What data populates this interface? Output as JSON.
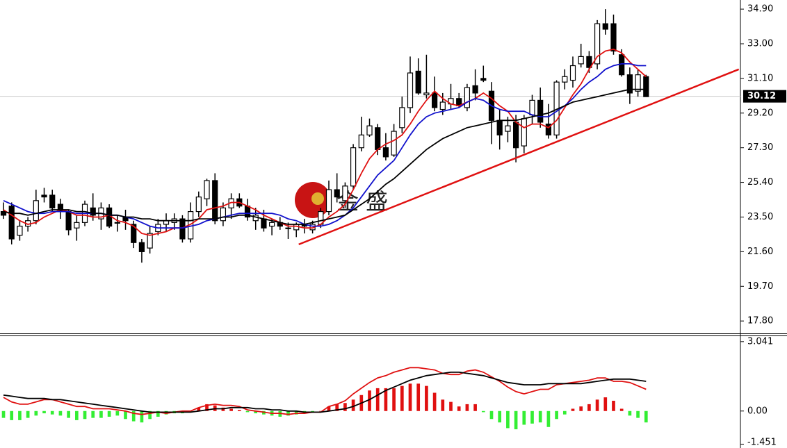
{
  "chart_data": [
    {
      "type": "candlestick",
      "xlim": [
        -0.43,
        90.6
      ],
      "ylim": [
        17.12,
        35.4
      ],
      "yticks": [
        {
          "value": 34.9,
          "label": "34.90"
        },
        {
          "value": 33.0,
          "label": "33.00"
        },
        {
          "value": 31.1,
          "label": "31.10"
        },
        {
          "value": 29.2,
          "label": "29.20"
        },
        {
          "value": 27.3,
          "label": "27.30"
        },
        {
          "value": 25.4,
          "label": "25.40"
        },
        {
          "value": 23.5,
          "label": "23.50"
        },
        {
          "value": 21.6,
          "label": "21.60"
        },
        {
          "value": 19.7,
          "label": "19.70"
        },
        {
          "value": 17.8,
          "label": "17.80"
        }
      ],
      "last_price": {
        "value": 30.12,
        "label": "30.12"
      },
      "watermark": "金 盛",
      "color": "#000000",
      "open": [
        23.8,
        24.1,
        22.5,
        23.0,
        23.3,
        24.7,
        24.7,
        24.2,
        23.8,
        22.9,
        23.2,
        24.0,
        23.4,
        24.0,
        23.2,
        23.5,
        23.1,
        22.1,
        21.8,
        22.7,
        23.1,
        23.2,
        23.4,
        22.3,
        23.8,
        24.5,
        25.5,
        23.3,
        24.0,
        24.5,
        24.1,
        23.3,
        23.4,
        23.0,
        23.2,
        22.9,
        22.8,
        23.1,
        22.8,
        23.1,
        23.8,
        25.0,
        24.4,
        25.2,
        27.3,
        28.0,
        28.4,
        27.3,
        26.9,
        28.4,
        29.5,
        31.5,
        30.2,
        30.3,
        29.4,
        29.7,
        30.0,
        29.5,
        30.7,
        31.1,
        30.4,
        28.8,
        28.2,
        28.7,
        27.4,
        29.1,
        29.9,
        28.6,
        28.0,
        30.9,
        31.0,
        31.9,
        32.3,
        31.9,
        34.1,
        34.1,
        32.4,
        31.3,
        30.4,
        31.2
      ],
      "high": [
        24.3,
        24.3,
        23.3,
        23.5,
        25.0,
        25.1,
        25.0,
        24.5,
        23.9,
        23.6,
        24.4,
        24.8,
        24.3,
        24.2,
        23.6,
        23.9,
        23.3,
        22.3,
        23.0,
        23.4,
        23.7,
        23.7,
        23.6,
        24.3,
        24.9,
        25.6,
        25.9,
        24.3,
        24.8,
        24.8,
        24.5,
        24.0,
        23.9,
        23.4,
        23.5,
        23.2,
        23.2,
        23.4,
        23.3,
        24.0,
        25.5,
        25.9,
        25.4,
        27.5,
        29.0,
        28.9,
        28.6,
        28.1,
        28.6,
        30.1,
        32.3,
        32.2,
        32.4,
        31.2,
        30.3,
        30.8,
        30.3,
        30.8,
        31.6,
        31.8,
        30.9,
        29.4,
        29.0,
        29.1,
        29.1,
        30.2,
        30.6,
        29.7,
        31.0,
        31.6,
        32.3,
        33.0,
        32.6,
        34.3,
        34.9,
        34.6,
        32.7,
        31.7,
        31.6,
        31.3
      ],
      "low": [
        23.4,
        22.0,
        22.2,
        22.7,
        23.1,
        24.3,
        23.8,
        23.4,
        22.5,
        22.2,
        23.0,
        23.3,
        22.8,
        22.9,
        22.7,
        22.8,
        21.8,
        21.0,
        21.5,
        22.5,
        22.7,
        22.8,
        22.1,
        22.1,
        23.5,
        24.1,
        23.1,
        23.0,
        23.4,
        24.0,
        23.3,
        22.8,
        22.7,
        22.5,
        22.8,
        22.3,
        22.4,
        22.6,
        22.6,
        22.9,
        23.6,
        24.3,
        24.0,
        25.0,
        27.1,
        27.9,
        26.9,
        26.6,
        26.8,
        28.1,
        29.2,
        30.2,
        30.0,
        29.3,
        29.1,
        29.4,
        29.5,
        29.3,
        29.9,
        30.9,
        27.5,
        27.2,
        27.6,
        26.5,
        27.0,
        28.6,
        28.4,
        27.8,
        27.8,
        30.5,
        30.6,
        31.7,
        31.4,
        31.6,
        33.5,
        32.4,
        31.2,
        29.7,
        30.1,
        30.1
      ],
      "close": [
        23.6,
        22.3,
        23.0,
        23.3,
        24.4,
        24.6,
        24.0,
        23.8,
        22.8,
        23.2,
        24.2,
        23.6,
        24.0,
        23.0,
        23.2,
        23.3,
        22.1,
        21.6,
        22.6,
        23.1,
        23.3,
        23.4,
        22.3,
        23.8,
        24.6,
        25.5,
        23.3,
        24.0,
        24.5,
        24.1,
        23.5,
        23.6,
        22.9,
        23.2,
        23.0,
        22.9,
        23.1,
        23.0,
        23.1,
        23.8,
        25.0,
        24.6,
        25.2,
        27.3,
        28.0,
        28.5,
        27.2,
        26.8,
        28.2,
        29.5,
        31.4,
        30.3,
        30.3,
        29.5,
        29.8,
        30.0,
        29.6,
        30.6,
        30.3,
        31.0,
        28.8,
        28.0,
        28.5,
        27.3,
        28.9,
        29.9,
        28.7,
        28.0,
        30.9,
        31.2,
        31.8,
        32.3,
        31.7,
        34.1,
        33.8,
        32.6,
        31.3,
        30.3,
        31.3,
        30.1
      ],
      "lines": [
        {
          "color": "#e01010",
          "values": [
            23.9,
            23.6,
            23.3,
            23.1,
            23.2,
            23.5,
            23.7,
            23.9,
            23.8,
            23.6,
            23.6,
            23.5,
            23.5,
            23.6,
            23.3,
            23.2,
            23.0,
            22.6,
            22.5,
            22.6,
            22.7,
            22.9,
            22.9,
            23.1,
            23.4,
            23.9,
            24.0,
            24.1,
            24.3,
            24.3,
            24.1,
            23.9,
            23.6,
            23.4,
            23.2,
            23.0,
            23.0,
            22.9,
            22.9,
            23.1,
            23.5,
            23.8,
            24.2,
            25.0,
            25.9,
            26.7,
            27.2,
            27.5,
            27.7,
            28.0,
            28.6,
            29.3,
            29.9,
            30.4,
            30.0,
            29.7,
            29.6,
            29.8,
            30.0,
            30.3,
            30.0,
            29.6,
            29.3,
            28.7,
            28.4,
            28.6,
            28.6,
            28.4,
            28.8,
            29.5,
            30.2,
            30.8,
            31.6,
            32.3,
            32.6,
            32.7,
            32.5,
            32.0,
            31.6,
            31.2
          ]
        },
        {
          "color": "#1010cc",
          "values": [
            24.4,
            24.2,
            24.0,
            23.8,
            23.7,
            23.7,
            23.8,
            23.8,
            23.8,
            23.7,
            23.7,
            23.7,
            23.7,
            23.6,
            23.6,
            23.5,
            23.4,
            23.2,
            23.0,
            22.9,
            22.9,
            22.9,
            22.9,
            23.0,
            23.1,
            23.3,
            23.4,
            23.5,
            23.6,
            23.7,
            23.7,
            23.7,
            23.7,
            23.7,
            23.6,
            23.4,
            23.3,
            23.1,
            23.0,
            23.0,
            23.1,
            23.3,
            23.6,
            24.0,
            24.6,
            25.2,
            25.8,
            26.2,
            26.6,
            27.3,
            28.0,
            28.6,
            29.0,
            29.2,
            29.3,
            29.4,
            29.5,
            29.8,
            30.0,
            29.9,
            29.6,
            29.4,
            29.3,
            29.3,
            29.3,
            29.1,
            29.0,
            29.0,
            29.3,
            29.6,
            30.0,
            30.5,
            30.9,
            31.2,
            31.6,
            31.8,
            31.9,
            31.9,
            31.8,
            31.8
          ]
        },
        {
          "color": "#000000",
          "values": [
            23.8,
            23.7,
            23.7,
            23.6,
            23.7,
            23.8,
            23.9,
            23.9,
            23.9,
            23.8,
            23.8,
            23.7,
            23.7,
            23.6,
            23.6,
            23.5,
            23.5,
            23.4,
            23.4,
            23.3,
            23.3,
            23.3,
            23.3,
            23.3,
            23.4,
            23.4,
            23.4,
            23.5,
            23.5,
            23.6,
            23.6,
            23.5,
            23.4,
            23.3,
            23.2,
            23.1,
            23.1,
            23.1,
            23.2,
            23.3,
            23.4,
            23.5,
            23.6,
            23.9,
            24.2,
            24.5,
            24.9,
            25.3,
            25.6,
            26.0,
            26.4,
            26.8,
            27.2,
            27.5,
            27.8,
            28.0,
            28.2,
            28.4,
            28.5,
            28.6,
            28.7,
            28.8,
            28.8,
            28.8,
            28.9,
            29.0,
            29.1,
            29.2,
            29.4,
            29.6,
            29.8,
            29.9,
            30.0,
            30.1,
            30.2,
            30.3,
            30.4,
            30.5,
            30.5,
            30.5
          ]
        }
      ],
      "trendline": {
        "color": "#e01010",
        "x": [
          36.3,
          90.4
        ],
        "y": [
          22.0,
          31.6
        ]
      }
    },
    {
      "type": "macd",
      "xlim": [
        -0.43,
        90.6
      ],
      "ylim": [
        -1.62,
        3.31
      ],
      "yticks": [
        {
          "value": 3.041,
          "label": "3.041"
        },
        {
          "value": 0,
          "label": "0.00"
        },
        -1.451
      ],
      "positive_color": "#e01010",
      "negative_color": "#33ee33",
      "values": [
        -0.3,
        -0.4,
        -0.4,
        -0.3,
        -0.2,
        -0.1,
        -0.15,
        -0.2,
        -0.3,
        -0.4,
        -0.35,
        -0.3,
        -0.3,
        -0.25,
        -0.2,
        -0.35,
        -0.45,
        -0.5,
        -0.35,
        -0.25,
        -0.15,
        -0.1,
        -0.1,
        -0.05,
        0.15,
        0.3,
        0.25,
        0.15,
        0.1,
        0.05,
        -0.05,
        -0.1,
        -0.15,
        -0.2,
        -0.25,
        -0.2,
        -0.15,
        -0.1,
        -0.05,
        0.0,
        0.2,
        0.3,
        0.35,
        0.5,
        0.7,
        0.9,
        1.0,
        1.0,
        1.0,
        1.1,
        1.2,
        1.2,
        1.1,
        0.8,
        0.5,
        0.4,
        0.2,
        0.3,
        0.3,
        -0.05,
        -0.35,
        -0.5,
        -0.75,
        -0.8,
        -0.6,
        -0.55,
        -0.5,
        -0.7,
        -0.35,
        -0.15,
        0.1,
        0.2,
        0.3,
        0.5,
        0.6,
        0.45,
        0.1,
        -0.2,
        -0.3,
        -0.5
      ],
      "lines": [
        {
          "color": "#e01010",
          "values": [
            0.6,
            0.4,
            0.3,
            0.3,
            0.4,
            0.5,
            0.5,
            0.4,
            0.3,
            0.2,
            0.2,
            0.1,
            0.1,
            0.1,
            0.05,
            0.0,
            -0.1,
            -0.15,
            -0.1,
            -0.05,
            -0.1,
            -0.05,
            0.0,
            0.0,
            0.15,
            0.25,
            0.3,
            0.25,
            0.25,
            0.2,
            0.05,
            0.0,
            -0.05,
            -0.1,
            -0.1,
            -0.15,
            -0.1,
            -0.1,
            -0.05,
            -0.05,
            0.2,
            0.3,
            0.45,
            0.75,
            1.0,
            1.25,
            1.45,
            1.55,
            1.7,
            1.8,
            1.9,
            1.9,
            1.85,
            1.8,
            1.65,
            1.6,
            1.6,
            1.75,
            1.8,
            1.7,
            1.5,
            1.3,
            1.05,
            0.85,
            0.75,
            0.85,
            0.95,
            0.95,
            1.15,
            1.2,
            1.25,
            1.3,
            1.35,
            1.45,
            1.45,
            1.3,
            1.3,
            1.25,
            1.1,
            0.95
          ]
        },
        {
          "color": "#000000",
          "values": [
            0.7,
            0.65,
            0.6,
            0.55,
            0.55,
            0.55,
            0.5,
            0.5,
            0.45,
            0.4,
            0.35,
            0.3,
            0.25,
            0.2,
            0.15,
            0.1,
            0.05,
            0.0,
            -0.05,
            -0.05,
            -0.05,
            -0.05,
            -0.05,
            -0.05,
            0.0,
            0.05,
            0.1,
            0.1,
            0.15,
            0.15,
            0.15,
            0.1,
            0.1,
            0.05,
            0.05,
            0.0,
            0.0,
            -0.05,
            -0.05,
            -0.05,
            0.0,
            0.05,
            0.1,
            0.2,
            0.35,
            0.5,
            0.7,
            0.9,
            1.05,
            1.2,
            1.35,
            1.45,
            1.55,
            1.6,
            1.65,
            1.7,
            1.7,
            1.65,
            1.6,
            1.55,
            1.45,
            1.35,
            1.25,
            1.2,
            1.15,
            1.15,
            1.15,
            1.2,
            1.2,
            1.2,
            1.2,
            1.2,
            1.25,
            1.3,
            1.35,
            1.4,
            1.4,
            1.4,
            1.35,
            1.3
          ]
        }
      ]
    }
  ]
}
